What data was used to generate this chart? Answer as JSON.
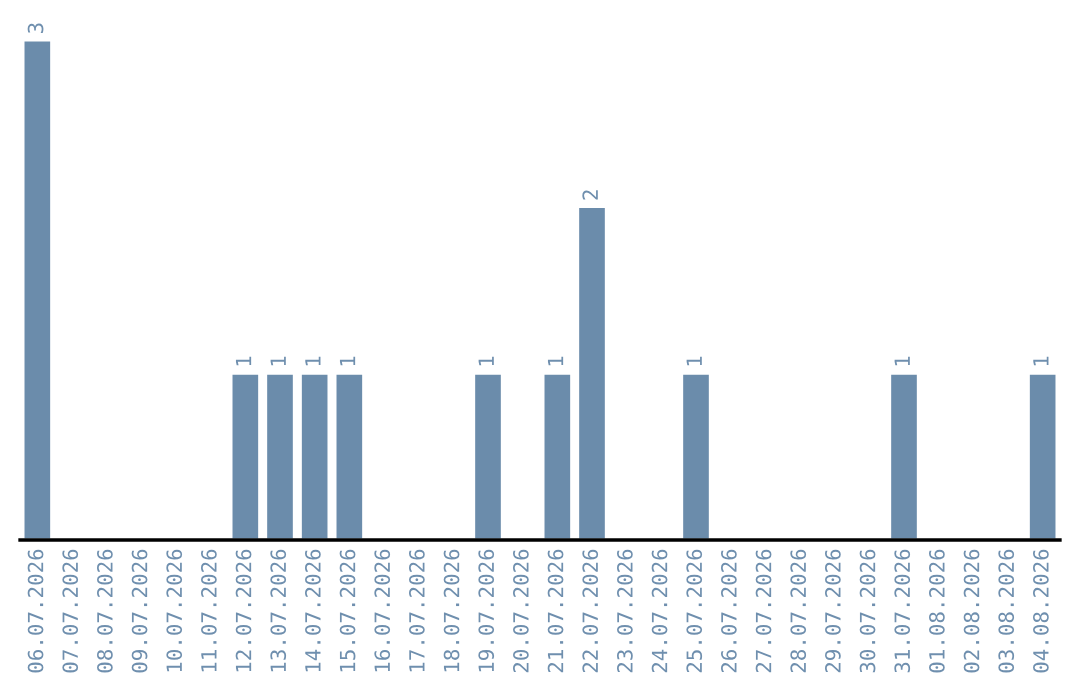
{
  "chart_data": {
    "type": "bar",
    "categories": [
      "06.07.2026",
      "07.07.2026",
      "08.07.2026",
      "09.07.2026",
      "10.07.2026",
      "11.07.2026",
      "12.07.2026",
      "13.07.2026",
      "14.07.2026",
      "15.07.2026",
      "16.07.2026",
      "17.07.2026",
      "18.07.2026",
      "19.07.2026",
      "20.07.2026",
      "21.07.2026",
      "22.07.2026",
      "23.07.2026",
      "24.07.2026",
      "25.07.2026",
      "26.07.2026",
      "27.07.2026",
      "28.07.2026",
      "29.07.2026",
      "30.07.2026",
      "31.07.2026",
      "01.08.2026",
      "02.08.2026",
      "03.08.2026",
      "04.08.2026"
    ],
    "values": [
      3,
      0,
      0,
      0,
      0,
      0,
      1,
      1,
      1,
      1,
      0,
      0,
      0,
      1,
      0,
      1,
      2,
      0,
      0,
      1,
      0,
      0,
      0,
      0,
      0,
      1,
      0,
      0,
      0,
      1
    ],
    "value_labels": [
      "3",
      null,
      null,
      null,
      null,
      null,
      "1",
      "1",
      "1",
      "1",
      null,
      null,
      null,
      "1",
      null,
      "1",
      "2",
      null,
      null,
      "1",
      null,
      null,
      null,
      null,
      null,
      "1",
      null,
      null,
      null,
      "1"
    ],
    "color": "#6b8cab",
    "ylim": [
      0,
      3
    ],
    "tick_labels": "x",
    "grid": false,
    "legend": false
  }
}
